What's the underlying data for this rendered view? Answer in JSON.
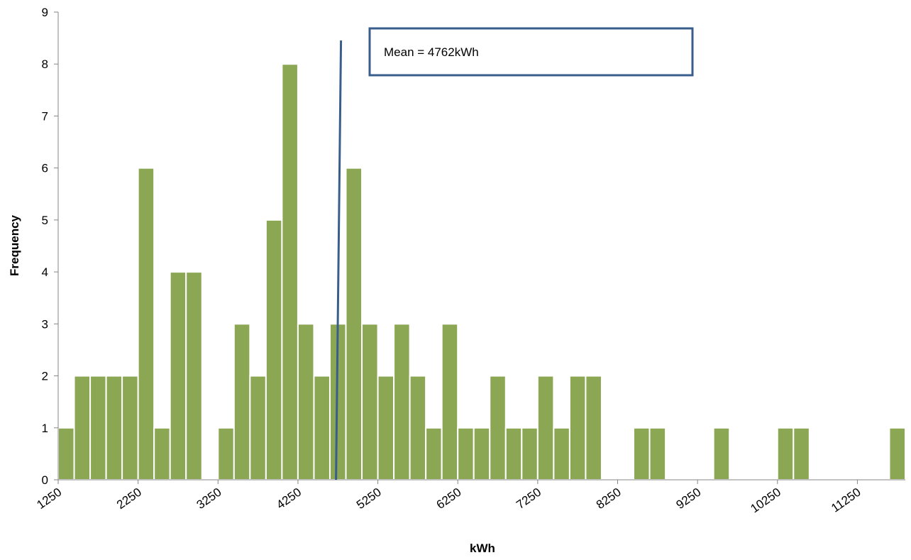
{
  "chart_data": {
    "type": "histogram",
    "x_label": "kWh",
    "y_label": "Frequency",
    "bins": [
      1250,
      1450,
      1650,
      1850,
      2050,
      2250,
      2450,
      2650,
      2850,
      3050,
      3250,
      3450,
      3650,
      3850,
      4050,
      4250,
      4450,
      4650,
      4850,
      5050,
      5250,
      5450,
      5650,
      5850,
      6050,
      6250,
      6450,
      6650,
      6850,
      7050,
      7250,
      7450,
      7650,
      7850,
      8050,
      8250,
      8450,
      8650,
      8850,
      9050,
      9250,
      9450,
      9650,
      9850,
      10050,
      10250,
      10450,
      10650,
      10850,
      11050,
      11250,
      11450,
      11650,
      11850
    ],
    "values": [
      1,
      2,
      2,
      2,
      2,
      6,
      1,
      4,
      4,
      0,
      1,
      3,
      2,
      5,
      8,
      3,
      2,
      3,
      6,
      3,
      2,
      3,
      2,
      1,
      3,
      1,
      1,
      2,
      1,
      1,
      2,
      1,
      2,
      2,
      0,
      0,
      1,
      1,
      0,
      0,
      0,
      1,
      0,
      0,
      0,
      1,
      1,
      0,
      0,
      0,
      0,
      0,
      1
    ],
    "color": "#8ba753",
    "xlim": [
      1250,
      11850
    ],
    "xticks": [
      1250,
      2250,
      3250,
      4250,
      5250,
      6250,
      7250,
      8250,
      9250,
      10250,
      11250
    ],
    "ylim": [
      0,
      9
    ],
    "yticks": [
      0,
      1,
      2,
      3,
      4,
      5,
      6,
      7,
      8,
      9
    ],
    "annotations": [
      {
        "text": "Mean = 4762kWh",
        "x": 4762,
        "color": "#3a5e8c"
      }
    ]
  }
}
